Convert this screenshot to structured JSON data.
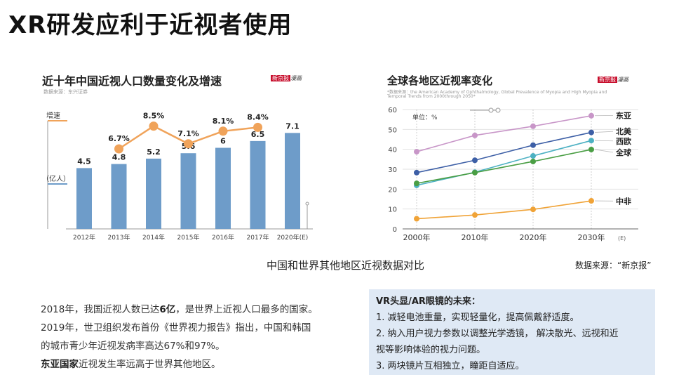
{
  "page": {
    "title": "XR研发应利于近视者使用",
    "caption": "中国和世界其他地区近视数据对比",
    "credit": "数据来源：“新京报”"
  },
  "stamp": {
    "red": "新京报",
    "black": "漫画"
  },
  "chart_data": [
    {
      "type": "bar",
      "title": "近十年中国近视人口数量变化及增速",
      "source": "数据来源：东兴证券",
      "categories": [
        "2012年",
        "2013年",
        "2014年",
        "2015年",
        "2016年",
        "2017年",
        "2020年(E)"
      ],
      "bar_label": "（亿人）",
      "values": [
        4.5,
        4.8,
        5.2,
        5.6,
        6,
        6.5,
        7.1
      ],
      "value_labels": [
        "4.5",
        "4.8",
        "5.2",
        "5.6",
        "6",
        "6.5",
        "7.1"
      ],
      "ylim": [
        0,
        8
      ],
      "growth_label": "增速",
      "growth": [
        null,
        6.7,
        8.5,
        7.1,
        8.1,
        8.4,
        null
      ],
      "growth_labels": [
        "",
        "6.7%",
        "8.5%",
        "7.1%",
        "8.1%",
        "8.4%",
        ""
      ],
      "bar_color": "#6e9cc9",
      "line_color": "#f0a35a"
    },
    {
      "type": "line",
      "title": "全球各地区近视率变化",
      "source_line1": "*数据来源：the American Academy of Ophthalmology, Global Prevalence of Myopia and High Myopia and",
      "source_line2": "Temporal Trends from 2000through 2050*",
      "unit": "单位：%",
      "x": [
        "2000年",
        "2010年",
        "2020年",
        "2030年"
      ],
      "x_suffix": "(E)",
      "ylim": [
        0,
        60
      ],
      "yticks": [
        0,
        10,
        20,
        30,
        40,
        50,
        60
      ],
      "series": [
        {
          "name": "东亚",
          "values": [
            38.8,
            47.0,
            51.6,
            56.9
          ],
          "color": "#c896c8"
        },
        {
          "name": "北美",
          "values": [
            28.3,
            34.5,
            42.1,
            48.5
          ],
          "color": "#3d5fa6"
        },
        {
          "name": "西欧",
          "values": [
            21.9,
            28.5,
            36.7,
            44.4
          ],
          "color": "#4db1c3"
        },
        {
          "name": "全球",
          "values": [
            22.9,
            28.3,
            33.9,
            39.9
          ],
          "color": "#4a9e44"
        },
        {
          "name": "中非",
          "values": [
            5.1,
            7.0,
            9.8,
            14.1
          ],
          "color": "#f0a337"
        }
      ]
    }
  ],
  "notes": {
    "line1_a": "2018年，我国近视人数已达",
    "line1_b": "6亿",
    "line1_c": "，是世界上近视人口最多的国家。",
    "line2": "2019年，世卫组织发布首份《世界视力报告》指出，中国和韩国",
    "line3": "的城市青少年近视发病率高达67%和97%。",
    "line4_a": "东亚国家",
    "line4_b": "近视发生率远高于世界其他地区。"
  },
  "future": {
    "title": "VR头显/AR眼镜的未来：",
    "item1": "1. 减轻电池重量，实现轻量化，提高佩戴舒适度。",
    "item2": "2. 纳入用户视力参数以调整光学透镜， 解决散光、远视和近",
    "item2b": "视等影响体验的视力问题。",
    "item3": "3. 两块镜片互相独立，瞳距自适应。"
  }
}
